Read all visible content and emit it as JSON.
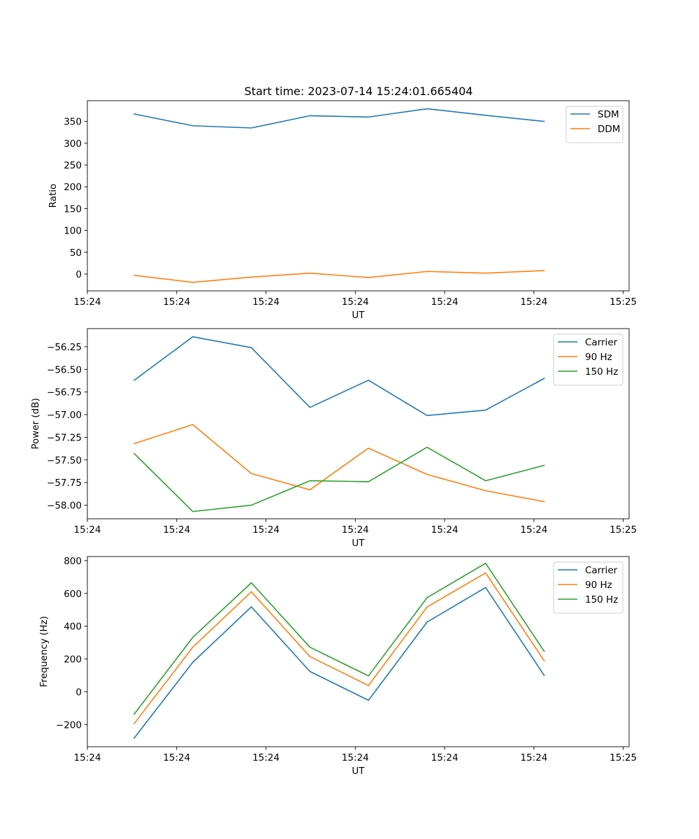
{
  "title": "Start time: 2023-07-14 15:24:01.665404",
  "chart_data": [
    {
      "type": "line",
      "title": "Start time: 2023-07-14 15:24:01.665404",
      "xlabel": "UT",
      "ylabel": "Ratio",
      "x": [
        1,
        2,
        3,
        4,
        5,
        6,
        7,
        8
      ],
      "xlim": [
        0.2,
        9.45
      ],
      "xticks": [
        0.2,
        1.725,
        3.25,
        4.775,
        6.3,
        7.825,
        9.35
      ],
      "xtick_labels": [
        "15:24",
        "15:24",
        "15:24",
        "15:24",
        "15:24",
        "15:24",
        "15:25"
      ],
      "ylim": [
        -38.5,
        397.5
      ],
      "yticks": [
        0,
        50,
        100,
        150,
        200,
        250,
        300,
        350
      ],
      "ytick_labels": [
        "0",
        "50",
        "100",
        "150",
        "200",
        "250",
        "300",
        "350"
      ],
      "legend": "top-right",
      "series": [
        {
          "name": "SDM",
          "color": "#1f77b4",
          "values": [
            367,
            340,
            335,
            363,
            360,
            379,
            364,
            350
          ]
        },
        {
          "name": "DDM",
          "color": "#ff7f0e",
          "values": [
            -3,
            -19,
            -7,
            2,
            -8,
            6,
            2,
            8
          ]
        }
      ]
    },
    {
      "type": "line",
      "title": "",
      "xlabel": "UT",
      "ylabel": "Power (dB)",
      "x": [
        1,
        2,
        3,
        4,
        5,
        6,
        7,
        8
      ],
      "xlim": [
        0.2,
        9.45
      ],
      "xticks": [
        0.2,
        1.725,
        3.25,
        4.775,
        6.3,
        7.825,
        9.35
      ],
      "xtick_labels": [
        "15:24",
        "15:24",
        "15:24",
        "15:24",
        "15:24",
        "15:24",
        "15:25"
      ],
      "ylim": [
        -58.15,
        -56.05
      ],
      "yticks": [
        -58.0,
        -57.75,
        -57.5,
        -57.25,
        -57.0,
        -56.75,
        -56.5,
        -56.25
      ],
      "ytick_labels": [
        "−58.00",
        "−57.75",
        "−57.50",
        "−57.25",
        "−57.00",
        "−56.75",
        "−56.50",
        "−56.25"
      ],
      "legend": "top-right",
      "series": [
        {
          "name": "Carrier",
          "color": "#1f77b4",
          "values": [
            -56.62,
            -56.14,
            -56.26,
            -56.92,
            -56.62,
            -57.01,
            -56.95,
            -56.6
          ]
        },
        {
          "name": "90 Hz",
          "color": "#ff7f0e",
          "values": [
            -57.32,
            -57.11,
            -57.65,
            -57.83,
            -57.37,
            -57.66,
            -57.84,
            -57.96
          ]
        },
        {
          "name": "150 Hz",
          "color": "#2ca02c",
          "values": [
            -57.43,
            -58.07,
            -58.0,
            -57.73,
            -57.74,
            -57.36,
            -57.73,
            -57.56
          ]
        }
      ]
    },
    {
      "type": "line",
      "title": "",
      "xlabel": "UT",
      "ylabel": "Frequency (Hz)",
      "x": [
        1,
        2,
        3,
        4,
        5,
        6,
        7,
        8
      ],
      "xlim": [
        0.2,
        9.45
      ],
      "xticks": [
        0.2,
        1.725,
        3.25,
        4.775,
        6.3,
        7.825,
        9.35
      ],
      "xtick_labels": [
        "15:24",
        "15:24",
        "15:24",
        "15:24",
        "15:24",
        "15:24",
        "15:25"
      ],
      "ylim": [
        -335,
        825
      ],
      "yticks": [
        -200,
        0,
        200,
        400,
        600,
        800
      ],
      "ytick_labels": [
        "−200",
        "0",
        "200",
        "400",
        "600",
        "800"
      ],
      "legend": "top-right",
      "series": [
        {
          "name": "Carrier",
          "color": "#1f77b4",
          "values": [
            -282,
            180,
            518,
            124,
            -52,
            425,
            636,
            100
          ]
        },
        {
          "name": "90 Hz",
          "color": "#ff7f0e",
          "values": [
            -194,
            272,
            610,
            215,
            38,
            517,
            725,
            190
          ]
        },
        {
          "name": "150 Hz",
          "color": "#2ca02c",
          "values": [
            -136,
            332,
            665,
            272,
            97,
            574,
            784,
            247
          ]
        }
      ]
    }
  ]
}
